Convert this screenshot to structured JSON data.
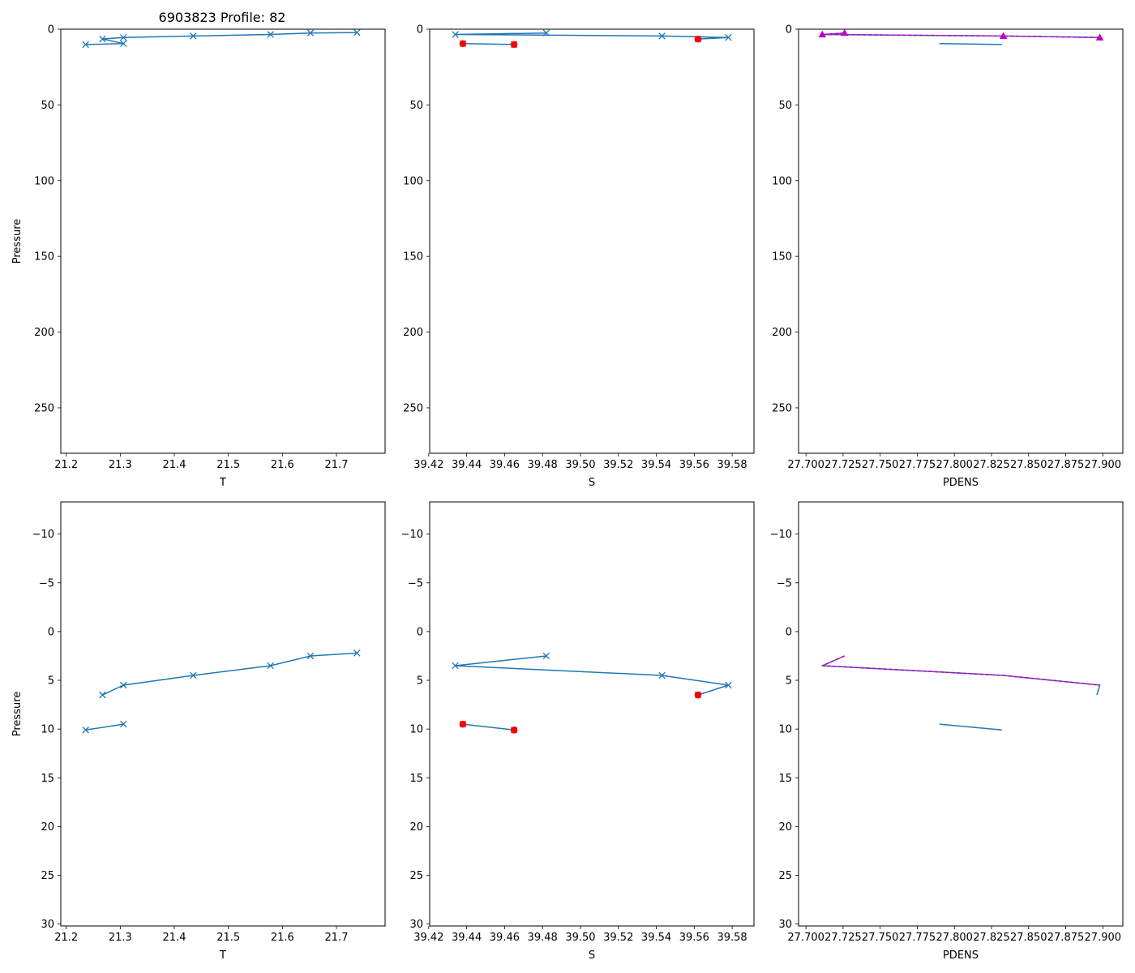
{
  "figure_title": "6903823 Profile: 82",
  "colors": {
    "series": "#1f77b4",
    "flag": "#ff0000",
    "density": "#bf00bf",
    "axis": "#000000",
    "background": "#ffffff"
  },
  "chart_data": [
    {
      "id": "top-T",
      "type": "line",
      "xlabel": "T",
      "ylabel": "Pressure",
      "xlim": [
        21.19,
        21.79
      ],
      "ylim": [
        280,
        0
      ],
      "xticks": [
        21.2,
        21.3,
        21.4,
        21.5,
        21.6,
        21.7
      ],
      "yticks": [
        0,
        50,
        100,
        150,
        200,
        250
      ],
      "series": [
        {
          "name": "T",
          "marker": "x",
          "color": "#1f77b4",
          "points": [
            [
              21.738,
              2.2
            ],
            [
              21.652,
              2.5
            ],
            [
              21.578,
              3.5
            ],
            [
              21.435,
              4.5
            ],
            [
              21.306,
              5.5
            ],
            [
              21.267,
              6.5
            ],
            [
              21.306,
              9.5
            ],
            [
              21.236,
              10.1
            ]
          ]
        }
      ]
    },
    {
      "id": "top-S",
      "type": "line",
      "xlabel": "S",
      "ylabel": "",
      "xlim": [
        39.4205,
        39.5915
      ],
      "ylim": [
        280,
        0
      ],
      "xticks": [
        39.42,
        39.44,
        39.46,
        39.48,
        39.5,
        39.52,
        39.54,
        39.56,
        39.58
      ],
      "yticks": [
        0,
        50,
        100,
        150,
        200,
        250
      ],
      "series": [
        {
          "name": "S",
          "marker": "x",
          "color": "#1f77b4",
          "points": [
            [
              39.482,
              2.5
            ],
            [
              39.434,
              3.5
            ],
            [
              39.543,
              4.5
            ],
            [
              39.578,
              5.5
            ],
            [
              39.562,
              6.5
            ]
          ]
        },
        {
          "name": "S-lower",
          "marker": "x",
          "color": "#1f77b4",
          "points": [
            [
              39.438,
              9.5
            ],
            [
              39.465,
              10.1
            ]
          ]
        },
        {
          "name": "flagged",
          "marker": "dot",
          "color": "#ff0000",
          "points": [
            [
              39.562,
              6.5
            ],
            [
              39.438,
              9.5
            ],
            [
              39.465,
              10.1
            ]
          ]
        }
      ]
    },
    {
      "id": "top-PDENS",
      "type": "line",
      "xlabel": "PDENS",
      "ylabel": "",
      "xlim": [
        27.695,
        27.9135
      ],
      "ylim": [
        280,
        0
      ],
      "xticks": [
        27.7,
        27.725,
        27.75,
        27.775,
        27.8,
        27.825,
        27.85,
        27.875,
        27.9
      ],
      "yticks": [
        0,
        50,
        100,
        150,
        200,
        250
      ],
      "series": [
        {
          "name": "PDENS",
          "marker": "none",
          "color": "#1f77b4",
          "points": [
            [
              27.726,
              2.5
            ],
            [
              27.711,
              3.5
            ],
            [
              27.833,
              4.5
            ],
            [
              27.898,
              5.5
            ],
            [
              27.896,
              6.5
            ]
          ]
        },
        {
          "name": "PDENS-lower",
          "marker": "none",
          "color": "#1f77b4",
          "points": [
            [
              27.79,
              9.5
            ],
            [
              27.832,
              10.1
            ]
          ]
        },
        {
          "name": "PDENS-smoothed",
          "marker": "triangle",
          "dashed": true,
          "color": "#bf00bf",
          "points": [
            [
              27.726,
              2.5
            ],
            [
              27.711,
              3.5
            ],
            [
              27.833,
              4.5
            ],
            [
              27.898,
              5.5
            ]
          ]
        }
      ]
    },
    {
      "id": "bottom-T",
      "type": "line",
      "xlabel": "T",
      "ylabel": "Pressure",
      "xlim": [
        21.19,
        21.79
      ],
      "ylim": [
        30.2,
        -13.3
      ],
      "xticks": [
        21.2,
        21.3,
        21.4,
        21.5,
        21.6,
        21.7
      ],
      "yticks": [
        -10,
        -5,
        0,
        5,
        10,
        15,
        20,
        25,
        30
      ],
      "series": [
        {
          "name": "T",
          "marker": "x",
          "color": "#1f77b4",
          "points": [
            [
              21.738,
              2.2
            ],
            [
              21.652,
              2.5
            ],
            [
              21.578,
              3.5
            ],
            [
              21.435,
              4.5
            ],
            [
              21.306,
              5.5
            ],
            [
              21.267,
              6.5
            ]
          ]
        },
        {
          "name": "T-lower",
          "marker": "x",
          "color": "#1f77b4",
          "points": [
            [
              21.306,
              9.5
            ],
            [
              21.236,
              10.1
            ]
          ]
        }
      ]
    },
    {
      "id": "bottom-S",
      "type": "line",
      "xlabel": "S",
      "ylabel": "",
      "xlim": [
        39.4205,
        39.5915
      ],
      "ylim": [
        30.2,
        -13.3
      ],
      "xticks": [
        39.42,
        39.44,
        39.46,
        39.48,
        39.5,
        39.52,
        39.54,
        39.56,
        39.58
      ],
      "yticks": [
        -10,
        -5,
        0,
        5,
        10,
        15,
        20,
        25,
        30
      ],
      "series": [
        {
          "name": "S",
          "marker": "x",
          "color": "#1f77b4",
          "points": [
            [
              39.482,
              2.5
            ],
            [
              39.434,
              3.5
            ],
            [
              39.543,
              4.5
            ],
            [
              39.578,
              5.5
            ],
            [
              39.562,
              6.5
            ]
          ]
        },
        {
          "name": "S-lower",
          "marker": "x",
          "color": "#1f77b4",
          "points": [
            [
              39.438,
              9.5
            ],
            [
              39.465,
              10.1
            ]
          ]
        },
        {
          "name": "flagged",
          "marker": "dot",
          "color": "#ff0000",
          "points": [
            [
              39.562,
              6.5
            ],
            [
              39.438,
              9.5
            ],
            [
              39.465,
              10.1
            ]
          ]
        }
      ]
    },
    {
      "id": "bottom-PDENS",
      "type": "line",
      "xlabel": "PDENS",
      "ylabel": "",
      "xlim": [
        27.695,
        27.9135
      ],
      "ylim": [
        30.2,
        -13.3
      ],
      "xticks": [
        27.7,
        27.725,
        27.75,
        27.775,
        27.8,
        27.825,
        27.85,
        27.875,
        27.9
      ],
      "yticks": [
        -10,
        -5,
        0,
        5,
        10,
        15,
        20,
        25,
        30
      ],
      "series": [
        {
          "name": "PDENS",
          "marker": "none",
          "color": "#1f77b4",
          "points": [
            [
              27.726,
              2.5
            ],
            [
              27.711,
              3.5
            ],
            [
              27.833,
              4.5
            ],
            [
              27.898,
              5.5
            ],
            [
              27.896,
              6.5
            ]
          ]
        },
        {
          "name": "PDENS-lower",
          "marker": "none",
          "color": "#1f77b4",
          "points": [
            [
              27.79,
              9.5
            ],
            [
              27.832,
              10.1
            ]
          ]
        },
        {
          "name": "PDENS-smoothed",
          "marker": "none",
          "dashed": true,
          "color": "#bf00bf",
          "points": [
            [
              27.726,
              2.5
            ],
            [
              27.711,
              3.5
            ],
            [
              27.833,
              4.5
            ],
            [
              27.898,
              5.5
            ]
          ]
        }
      ]
    }
  ]
}
